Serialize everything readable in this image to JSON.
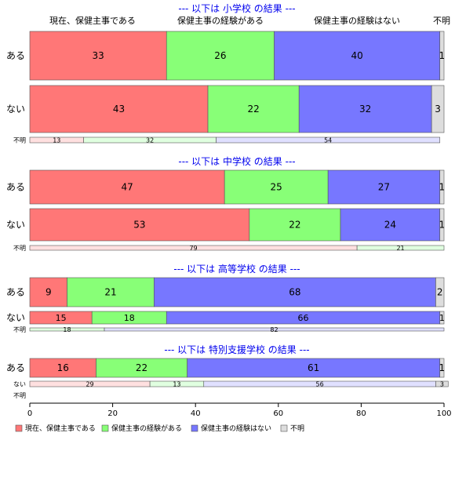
{
  "chart_data": {
    "type": "bar",
    "orientation": "horizontal",
    "stacked": true,
    "xlim": [
      0,
      100
    ],
    "x_ticks": [
      0,
      20,
      40,
      60,
      80,
      100
    ],
    "grid": false,
    "legend_position": "bottom-left",
    "column_headers": [
      "現在、保健主事である",
      "保健主事の経験がある",
      "保健主事の経験はない",
      "不明"
    ],
    "series": [
      {
        "name": "現在、保健主事である",
        "color": "#ff7777"
      },
      {
        "name": "保健主事の経験がある",
        "color": "#88ff77"
      },
      {
        "name": "保健主事の経験はない",
        "color": "#7777ff"
      },
      {
        "name": "不明",
        "color": "#dddddd"
      }
    ],
    "panels": [
      {
        "title": "--- 以下は 小学校 の結果 ---",
        "rows": [
          {
            "label": "ある",
            "values": [
              33,
              26,
              40,
              1
            ]
          },
          {
            "label": "ない",
            "values": [
              43,
              22,
              32,
              3
            ]
          },
          {
            "label": "不明",
            "values": [
              13,
              32,
              54,
              0
            ]
          }
        ]
      },
      {
        "title": "--- 以下は 中学校 の結果 ---",
        "rows": [
          {
            "label": "ある",
            "values": [
              47,
              25,
              27,
              1
            ]
          },
          {
            "label": "ない",
            "values": [
              53,
              22,
              24,
              1
            ]
          },
          {
            "label": "不明",
            "values": [
              79,
              21,
              0,
              0
            ]
          }
        ]
      },
      {
        "title": "--- 以下は 高等学校 の結果 ---",
        "rows": [
          {
            "label": "ある",
            "values": [
              9,
              21,
              68,
              2
            ]
          },
          {
            "label": "ない",
            "values": [
              15,
              18,
              66,
              1
            ]
          },
          {
            "label": "不明",
            "values": [
              0,
              18,
              82,
              0
            ]
          }
        ]
      },
      {
        "title": "--- 以下は 特別支援学校 の結果 ---",
        "rows": [
          {
            "label": "ある",
            "values": [
              16,
              22,
              61,
              1
            ]
          },
          {
            "label": "ない",
            "values": [
              29,
              13,
              56,
              3
            ]
          },
          {
            "label": "不明",
            "values": [
              0,
              0,
              0,
              0
            ]
          }
        ]
      }
    ]
  }
}
